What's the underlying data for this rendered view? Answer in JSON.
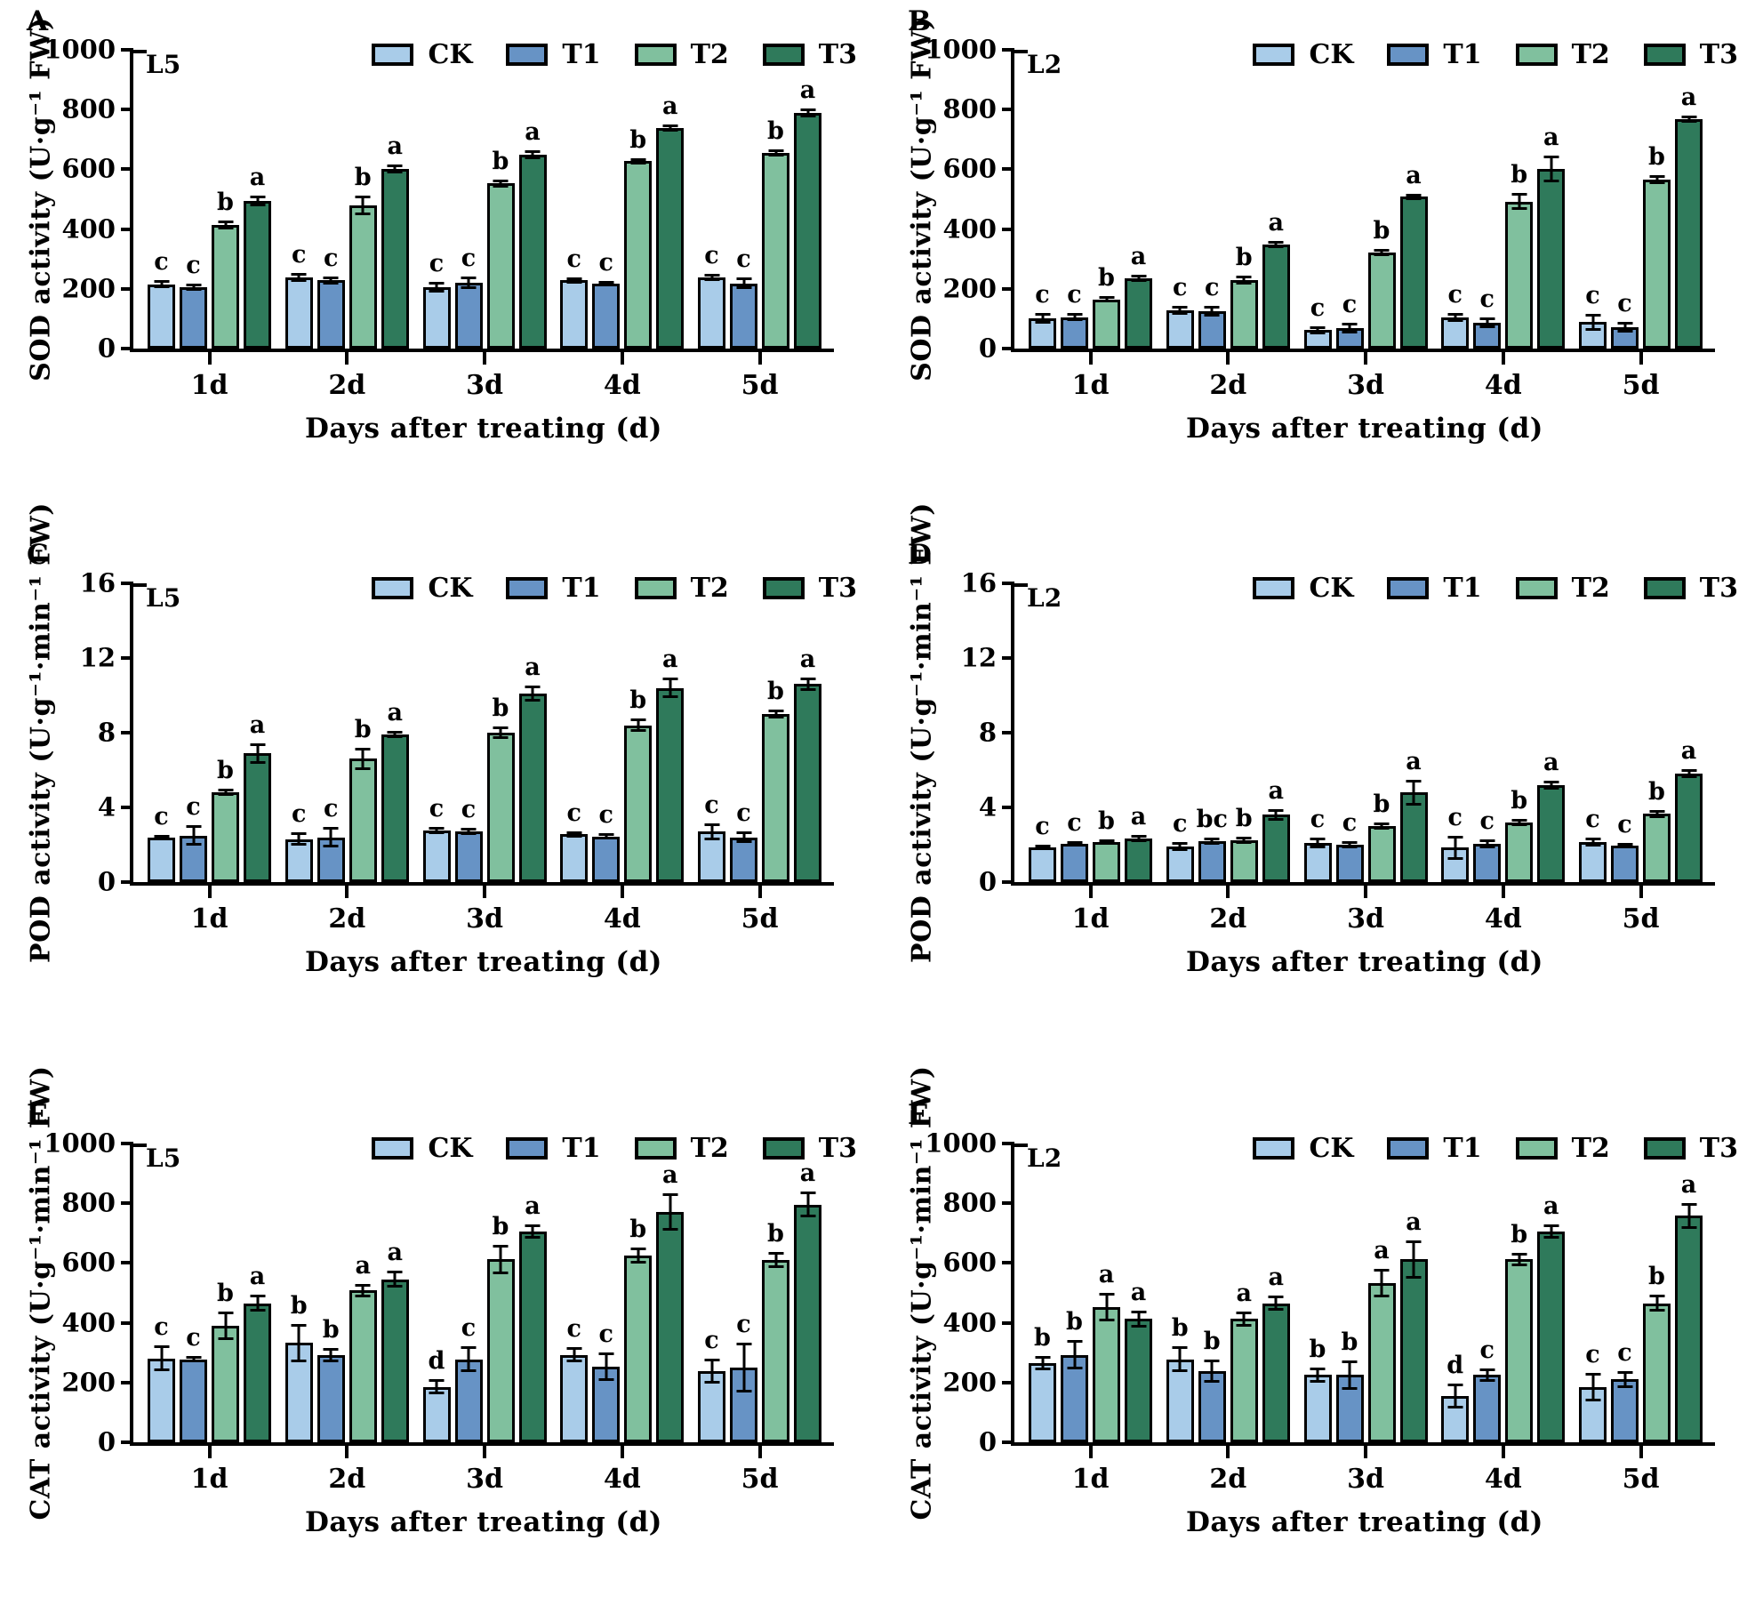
{
  "figure": {
    "x_title": "Days after treating (d)",
    "categories": [
      "1d",
      "2d",
      "3d",
      "4d",
      "5d"
    ],
    "series_names": [
      "CK",
      "T1",
      "T2",
      "T3"
    ],
    "colors": [
      "#a9cce9",
      "#6793c5",
      "#80c09e",
      "#2f7a5b"
    ],
    "axis_color": "#000000",
    "background": "#ffffff"
  },
  "chart_data": [
    {
      "type": "bar",
      "letter": "A",
      "label": "L5",
      "ylabel": "SOD activity (U·g⁻¹ FW)",
      "ylim": [
        0,
        1000
      ],
      "yticks": [
        0,
        200,
        400,
        600,
        800,
        1000
      ],
      "series": [
        {
          "name": "CK",
          "values": [
            215,
            237,
            205,
            228,
            238
          ],
          "errors": [
            10,
            12,
            14,
            8,
            8
          ],
          "letters": [
            "c",
            "c",
            "c",
            "c",
            "c"
          ]
        },
        {
          "name": "T1",
          "values": [
            205,
            228,
            220,
            218,
            218
          ],
          "errors": [
            10,
            10,
            18,
            6,
            16
          ],
          "letters": [
            "c",
            "c",
            "c",
            "c",
            "c"
          ]
        },
        {
          "name": "T2",
          "values": [
            415,
            478,
            553,
            627,
            655
          ],
          "errors": [
            12,
            30,
            10,
            8,
            10
          ],
          "letters": [
            "b",
            "b",
            "b",
            "b",
            "b"
          ]
        },
        {
          "name": "T3",
          "values": [
            495,
            600,
            650,
            738,
            790
          ],
          "errors": [
            15,
            12,
            12,
            8,
            12
          ],
          "letters": [
            "a",
            "a",
            "a",
            "a",
            "a"
          ]
        }
      ]
    },
    {
      "type": "bar",
      "letter": "B",
      "label": "L2",
      "ylabel": "SOD activity (U·g⁻¹ FW)",
      "ylim": [
        0,
        1000
      ],
      "yticks": [
        0,
        200,
        400,
        600,
        800,
        1000
      ],
      "series": [
        {
          "name": "CK",
          "values": [
            100,
            128,
            62,
            103,
            88
          ],
          "errors": [
            15,
            12,
            10,
            12,
            25
          ],
          "letters": [
            "c",
            "c",
            "c",
            "c",
            "c"
          ]
        },
        {
          "name": "T1",
          "values": [
            105,
            125,
            68,
            85,
            72
          ],
          "errors": [
            10,
            15,
            15,
            15,
            15
          ],
          "letters": [
            "c",
            "c",
            "c",
            "c",
            "c"
          ]
        },
        {
          "name": "T2",
          "values": [
            165,
            230,
            322,
            492,
            565
          ],
          "errors": [
            8,
            12,
            8,
            25,
            12
          ],
          "letters": [
            "b",
            "b",
            "b",
            "b",
            "b"
          ]
        },
        {
          "name": "T3",
          "values": [
            235,
            348,
            508,
            602,
            768
          ],
          "errors": [
            8,
            10,
            8,
            42,
            10
          ],
          "letters": [
            "a",
            "a",
            "a",
            "a",
            "a"
          ]
        }
      ]
    },
    {
      "type": "bar",
      "letter": "C",
      "label": "L5",
      "ylabel": "POD activity (U·g⁻¹·min⁻¹ FW)",
      "ylim": [
        0,
        16
      ],
      "yticks": [
        0,
        4,
        8,
        12,
        16
      ],
      "series": [
        {
          "name": "CK",
          "values": [
            2.4,
            2.3,
            2.75,
            2.55,
            2.7
          ],
          "errors": [
            0.1,
            0.3,
            0.15,
            0.1,
            0.4
          ],
          "letters": [
            "c",
            "c",
            "c",
            "c",
            "c"
          ]
        },
        {
          "name": "T1",
          "values": [
            2.5,
            2.4,
            2.7,
            2.45,
            2.4
          ],
          "errors": [
            0.5,
            0.5,
            0.15,
            0.1,
            0.25
          ],
          "letters": [
            "c",
            "c",
            "c",
            "c",
            "c"
          ]
        },
        {
          "name": "T2",
          "values": [
            4.8,
            6.6,
            8.0,
            8.4,
            9.0
          ],
          "errors": [
            0.15,
            0.55,
            0.3,
            0.3,
            0.2
          ],
          "letters": [
            "b",
            "b",
            "b",
            "b",
            "b"
          ]
        },
        {
          "name": "T3",
          "values": [
            6.9,
            7.9,
            10.1,
            10.4,
            10.6
          ],
          "errors": [
            0.5,
            0.15,
            0.4,
            0.5,
            0.3
          ],
          "letters": [
            "a",
            "a",
            "a",
            "a",
            "a"
          ]
        }
      ]
    },
    {
      "type": "bar",
      "letter": "D",
      "label": "L2",
      "ylabel": "POD activity (U·g⁻¹·min⁻¹ FW)",
      "ylim": [
        0,
        16
      ],
      "yticks": [
        0,
        4,
        8,
        12,
        16
      ],
      "series": [
        {
          "name": "CK",
          "values": [
            1.85,
            1.9,
            2.1,
            1.85,
            2.15
          ],
          "errors": [
            0.1,
            0.2,
            0.25,
            0.6,
            0.2
          ],
          "letters": [
            "c",
            "c",
            "c",
            "c",
            "c"
          ]
        },
        {
          "name": "T1",
          "values": [
            2.05,
            2.2,
            2.0,
            2.05,
            1.95
          ],
          "errors": [
            0.1,
            0.15,
            0.15,
            0.2,
            0.1
          ],
          "letters": [
            "c",
            "bc",
            "c",
            "c",
            "c"
          ]
        },
        {
          "name": "T2",
          "values": [
            2.15,
            2.25,
            3.0,
            3.2,
            3.65
          ],
          "errors": [
            0.1,
            0.15,
            0.15,
            0.15,
            0.15
          ],
          "letters": [
            "b",
            "b",
            "b",
            "b",
            "b"
          ]
        },
        {
          "name": "T3",
          "values": [
            2.35,
            3.6,
            4.8,
            5.2,
            5.8
          ],
          "errors": [
            0.15,
            0.25,
            0.65,
            0.2,
            0.2
          ],
          "letters": [
            "a",
            "a",
            "a",
            "a",
            "a"
          ]
        }
      ]
    },
    {
      "type": "bar",
      "letter": "E",
      "label": "L5",
      "ylabel": "CAT activity (U·g⁻¹·min⁻¹ FW)",
      "ylim": [
        0,
        1000
      ],
      "yticks": [
        0,
        200,
        400,
        600,
        800,
        1000
      ],
      "series": [
        {
          "name": "CK",
          "values": [
            280,
            332,
            185,
            293,
            238
          ],
          "errors": [
            40,
            60,
            22,
            22,
            38
          ],
          "letters": [
            "c",
            "b",
            "d",
            "c",
            "c"
          ]
        },
        {
          "name": "T1",
          "values": [
            278,
            292,
            278,
            252,
            250
          ],
          "errors": [
            8,
            22,
            40,
            45,
            80
          ],
          "letters": [
            "c",
            "b",
            "c",
            "c",
            "c"
          ]
        },
        {
          "name": "T2",
          "values": [
            390,
            508,
            612,
            625,
            610
          ],
          "errors": [
            45,
            20,
            45,
            25,
            25
          ],
          "letters": [
            "b",
            "a",
            "b",
            "b",
            "b"
          ]
        },
        {
          "name": "T3",
          "values": [
            465,
            545,
            705,
            770,
            795
          ],
          "errors": [
            25,
            25,
            20,
            60,
            40
          ],
          "letters": [
            "a",
            "a",
            "a",
            "a",
            "a"
          ]
        }
      ]
    },
    {
      "type": "bar",
      "letter": "F",
      "label": "L2",
      "ylabel": "CAT activity (U·g⁻¹·min⁻¹ FW)",
      "ylim": [
        0,
        1000
      ],
      "yticks": [
        0,
        200,
        400,
        600,
        800,
        1000
      ],
      "series": [
        {
          "name": "CK",
          "values": [
            265,
            278,
            225,
            155,
            185
          ],
          "errors": [
            20,
            40,
            22,
            38,
            45
          ],
          "letters": [
            "b",
            "b",
            "b",
            "d",
            "c"
          ]
        },
        {
          "name": "T1",
          "values": [
            293,
            238,
            225,
            225,
            210
          ],
          "errors": [
            45,
            35,
            45,
            20,
            25
          ],
          "letters": [
            "b",
            "b",
            "b",
            "c",
            "c"
          ]
        },
        {
          "name": "T2",
          "values": [
            452,
            413,
            532,
            612,
            465
          ],
          "errors": [
            45,
            22,
            45,
            20,
            25
          ],
          "letters": [
            "a",
            "a",
            "a",
            "b",
            "b"
          ]
        },
        {
          "name": "T3",
          "values": [
            413,
            465,
            612,
            705,
            758
          ],
          "errors": [
            25,
            22,
            60,
            20,
            40
          ],
          "letters": [
            "a",
            "a",
            "a",
            "a",
            "a"
          ]
        }
      ]
    }
  ]
}
